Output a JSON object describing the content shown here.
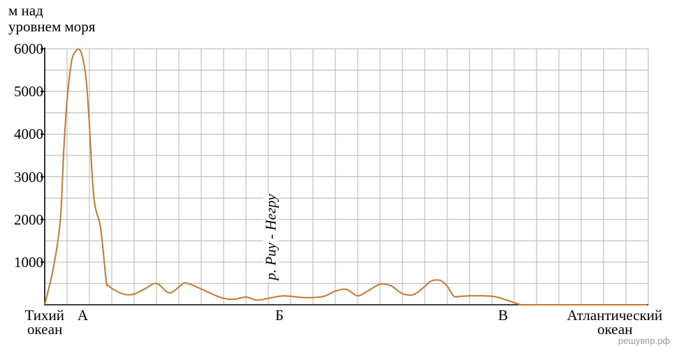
{
  "chart_data": {
    "type": "line",
    "title": "",
    "ylabel_lines": [
      "м над",
      "уровнем моря"
    ],
    "xlabel": "",
    "ylim": [
      0,
      6000
    ],
    "y_ticks": [
      1000,
      2000,
      3000,
      4000,
      5000,
      6000
    ],
    "y_tick_labels": [
      "1000",
      "2000",
      "3000",
      "4000",
      "5000",
      "6000"
    ],
    "grid": true,
    "line_color": "#c8782e",
    "x_extent": [
      0,
      27
    ],
    "x_points": [
      {
        "x": 0,
        "lines": [
          "Тихий",
          "океан"
        ]
      },
      {
        "x": 1.7,
        "lines": [
          "А"
        ]
      },
      {
        "x": 10.5,
        "lines": [
          "Б"
        ]
      },
      {
        "x": 20.5,
        "lines": [
          "В"
        ]
      },
      {
        "x": 25.5,
        "lines": [
          "Атлантический",
          "океан"
        ]
      }
    ],
    "annotation": {
      "text": "р. Риу - Негру",
      "x": 10.1
    },
    "series": [
      {
        "x": [
          0,
          0.4,
          0.7,
          0.85,
          1.0,
          1.2,
          1.4,
          1.6,
          1.8,
          1.9,
          2.0,
          2.2,
          2.5,
          2.75,
          2.85,
          3.2,
          3.6,
          4.0,
          4.5,
          5.0,
          5.5,
          5.8,
          6.2,
          6.5,
          7.0,
          7.5,
          8.0,
          8.5,
          9.0,
          9.5,
          10.0,
          10.3,
          10.5,
          10.7,
          11.0,
          11.5,
          12.0,
          12.5,
          13.0,
          13.5,
          14.0,
          14.5,
          15.0,
          15.5,
          16.0,
          16.5,
          17.0,
          17.3,
          17.7,
          18.0,
          18.3,
          18.6,
          19.0,
          19.3,
          19.7,
          20.0,
          20.3,
          20.6,
          21.0,
          21.3,
          21.7,
          22.0,
          22.5,
          23.0,
          23.5,
          24.0,
          24.5,
          25.0,
          25.5,
          26.0,
          26.5,
          26.95
        ],
        "y": [
          0,
          900,
          2000,
          3600,
          4800,
          5700,
          5950,
          5950,
          5500,
          5000,
          4200,
          2500,
          1800,
          570,
          450,
          320,
          240,
          250,
          380,
          500,
          290,
          330,
          500,
          480,
          370,
          250,
          150,
          130,
          180,
          110,
          150,
          180,
          200,
          210,
          200,
          170,
          170,
          200,
          320,
          360,
          210,
          340,
          480,
          440,
          260,
          240,
          430,
          560,
          570,
          440,
          200,
          200,
          210,
          210,
          210,
          200,
          170,
          120,
          50,
          0,
          0,
          0,
          0,
          0,
          0,
          0,
          0,
          0,
          0,
          0,
          0,
          0
        ]
      }
    ]
  },
  "watermark": "решувпр.рф"
}
